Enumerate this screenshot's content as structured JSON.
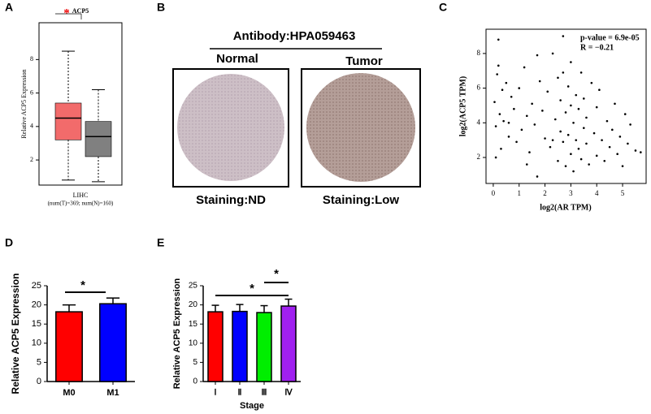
{
  "panel_labels": [
    "A",
    "B",
    "C",
    "D",
    "E"
  ],
  "ihc": {
    "antibody": "Antibody:HPA059463",
    "normal": "Normal",
    "tumor": "Tumor",
    "staining_normal": "Staining:ND",
    "staining_tumor": "Staining:Low"
  },
  "chart_data": [
    {
      "type": "box",
      "title": "ACP5",
      "ylabel": "Relative ACP5 Expression",
      "xlabel": "LIHC",
      "xlabel2": "(num(T)=369; num(N)=160)",
      "ylim": [
        0.5,
        10.2
      ],
      "yticks": [
        2,
        4,
        6,
        8
      ],
      "annotations": [
        "*"
      ],
      "boxes": [
        {
          "color": "#f26b6b",
          "min": 0.8,
          "q1": 3.2,
          "median": 4.5,
          "q3": 5.4,
          "max": 8.5
        },
        {
          "color": "#808080",
          "min": 0.7,
          "q1": 2.2,
          "median": 3.4,
          "q3": 4.3,
          "max": 6.2
        }
      ]
    },
    {
      "type": "scatter",
      "xlabel": "log2(AR TPM)",
      "ylabel": "log2(ACP5 TPM)",
      "annotations": [
        "p-value = 6.9e-05",
        "R = −0.21"
      ],
      "xlim": [
        -0.28,
        5.91
      ],
      "xticks": [
        0,
        1,
        2,
        3,
        4,
        5
      ],
      "ylim": [
        0.5,
        9.4
      ],
      "yticks": [
        2,
        4,
        6,
        8
      ],
      "color": "#000000",
      "x": [
        0.05,
        0.1,
        0.15,
        0.2,
        0.25,
        0.3,
        0.35,
        0.4,
        0.5,
        0.6,
        0.7,
        0.8,
        0.9,
        1.0,
        1.1,
        1.2,
        1.3,
        1.4,
        1.5,
        1.6,
        1.7,
        1.8,
        1.9,
        2.0,
        2.1,
        2.2,
        2.3,
        2.4,
        2.5,
        2.5,
        2.6,
        2.6,
        2.7,
        2.7,
        2.8,
        2.8,
        2.9,
        2.9,
        3.0,
        3.0,
        3.0,
        3.1,
        3.1,
        3.2,
        3.2,
        3.3,
        3.3,
        3.4,
        3.4,
        3.5,
        3.5,
        3.6,
        3.6,
        3.7,
        3.8,
        3.9,
        4.0,
        4.0,
        4.1,
        4.2,
        4.3,
        4.4,
        4.5,
        4.6,
        4.7,
        4.8,
        4.9,
        5.0,
        5.1,
        5.2,
        5.3,
        5.5,
        5.7,
        0.2,
        0.1,
        1.7,
        2.7,
        2.3,
        0.6,
        1.3
      ],
      "y": [
        5.2,
        3.8,
        6.8,
        8.8,
        4.5,
        2.5,
        5.9,
        4.1,
        6.3,
        3.2,
        5.5,
        4.8,
        2.9,
        6.0,
        3.6,
        7.2,
        4.4,
        2.3,
        5.1,
        3.9,
        0.9,
        6.4,
        4.7,
        3.1,
        5.8,
        2.6,
        8.0,
        4.2,
        6.6,
        1.8,
        3.5,
        5.3,
        9.0,
        2.9,
        4.6,
        1.5,
        6.1,
        3.3,
        5.0,
        2.2,
        7.5,
        4.0,
        1.2,
        5.6,
        3.0,
        2.5,
        4.8,
        6.9,
        1.9,
        3.7,
        5.4,
        2.8,
        4.3,
        1.6,
        6.3,
        3.4,
        2.1,
        4.9,
        5.9,
        3.0,
        1.8,
        4.1,
        2.6,
        3.6,
        5.1,
        2.2,
        3.2,
        1.5,
        4.5,
        2.8,
        3.9,
        2.4,
        2.3,
        7.3,
        2.0,
        7.9,
        6.9,
        3.0,
        4.0,
        1.6
      ]
    },
    {
      "type": "bar",
      "ylabel": "Relative ACP5 Expression",
      "categories": [
        "M0",
        "M1"
      ],
      "values": [
        18.2,
        20.3
      ],
      "errors": [
        1.8,
        1.5
      ],
      "colors": [
        "#ff0000",
        "#0000ff"
      ],
      "ylim": [
        0,
        25
      ],
      "yticks": [
        0,
        5,
        10,
        15,
        20,
        25
      ],
      "annotations": [
        "*"
      ]
    },
    {
      "type": "bar",
      "ylabel": "Relative ACP5 Expression",
      "xlabel": "Stage",
      "categories": [
        "Ⅰ",
        "Ⅱ",
        "Ⅲ",
        "Ⅳ"
      ],
      "values": [
        18.2,
        18.3,
        18.0,
        19.7
      ],
      "errors": [
        1.7,
        1.8,
        1.8,
        1.8
      ],
      "colors": [
        "#ff0000",
        "#0000ff",
        "#00ee00",
        "#a020f0"
      ],
      "ylim": [
        0,
        25
      ],
      "yticks": [
        0,
        5,
        10,
        15,
        20,
        25
      ],
      "annotations": [
        "*",
        "*"
      ]
    }
  ]
}
